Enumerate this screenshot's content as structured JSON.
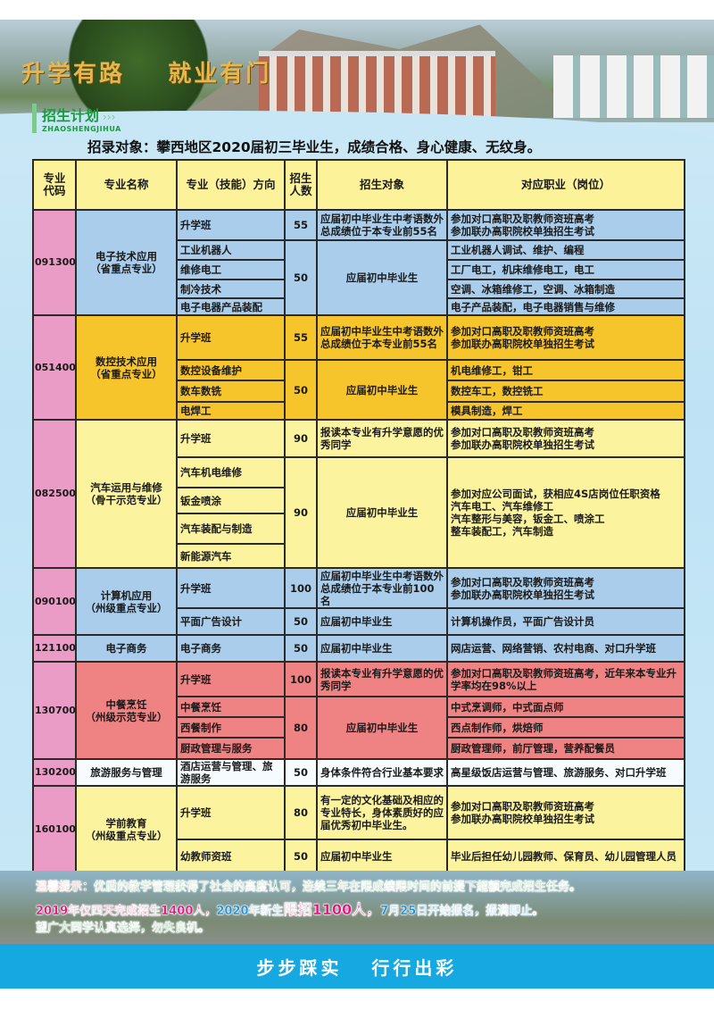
{
  "banner": {
    "title": "升学有路    就业有门"
  },
  "section": {
    "title": "招生计划",
    "arrows": "›››",
    "pinyin": "ZHAOSHENGJIHUA"
  },
  "intro": "招录对象：攀西地区2020届初三毕业生，成绩合格、身心健康、无纹身。",
  "table": {
    "headers": [
      "专业\n代码",
      "专业名称",
      "专业（技能）方向",
      "招生\n人数",
      "招生对象",
      "对应职业（岗位）"
    ],
    "groups": [
      {
        "code": "091300",
        "name": "电子技术应用\n（省重点专业）",
        "color": "#a9cdeb",
        "theme": "blue",
        "sections": [
          {
            "count": "55",
            "target": "应届初中毕业生中考语数外总成绩位于本专业前55名",
            "items": [
              {
                "direction": "升学班",
                "career": "参加对口高职及职教师资班高考\n参加联办高职院校单独招生考试"
              }
            ]
          },
          {
            "count": "50",
            "target": "应届初中毕业生",
            "items": [
              {
                "direction": "工业机器人",
                "career": "工业机器人调试、维护、编程"
              },
              {
                "direction": "维修电工",
                "career": "工厂电工，机床维修电工，电工"
              },
              {
                "direction": "制冷技术",
                "career": "空调、冰箱维修工，空调、冰箱制造"
              },
              {
                "direction": "电子电器产品装配",
                "career": "电子产品装配，电子电器销售与维修"
              }
            ]
          }
        ]
      },
      {
        "code": "051400",
        "name": "数控技术应用\n（省重点专业）",
        "color": "#f6c52b",
        "theme": "orange",
        "sections": [
          {
            "count": "55",
            "target": "应届初中毕业生中考语数外总成绩位于本专业前55名",
            "items": [
              {
                "direction": "升学班",
                "career": "参加对口高职及职教师资班高考\n参加联办高职院校单独招生考试"
              }
            ]
          },
          {
            "count": "50",
            "target": "应届初中毕业生",
            "items": [
              {
                "direction": "数控设备维护",
                "career": "机电维修工，钳工"
              },
              {
                "direction": "数车数铣",
                "career": "数控车工，数控铣工"
              },
              {
                "direction": "电焊工",
                "career": "模具制造，焊工"
              }
            ]
          }
        ]
      },
      {
        "code": "082500",
        "name": "汽车运用与维修\n（骨干示范专业）",
        "color": "#fbf39d",
        "theme": "yellow",
        "sections": [
          {
            "count": "90",
            "target": "报读本专业有升学意愿的优秀同学",
            "items": [
              {
                "direction": "升学班",
                "career": "参加对口高职及职教师资班高考\n参加联办高职院校单独招生考试"
              }
            ]
          },
          {
            "count": "90",
            "target": "应届初中毕业生",
            "career": "参加对应公司面试，获相应4S店岗位任职资格\n汽车电工、汽车维修工\n汽车整形与美容，钣金工、喷涂工\n整车装配工，汽车制造",
            "items": [
              {
                "direction": "汽车机电维修"
              },
              {
                "direction": "钣金喷涂"
              },
              {
                "direction": "汽车装配与制造"
              },
              {
                "direction": "新能源汽车"
              }
            ]
          }
        ]
      },
      {
        "code": "090100",
        "name": "计算机应用\n（州级重点专业）",
        "color": "#a9cdeb",
        "theme": "blue",
        "sections": [
          {
            "count": "100",
            "target": "应届初中毕业生中考语数外总成绩位于本专业前100名",
            "items": [
              {
                "direction": "升学班",
                "career": "参加对口高职及职教师资班高考\n参加联办高职院校单独招生考试"
              }
            ]
          },
          {
            "count": "50",
            "target": "应届初中毕业生",
            "items": [
              {
                "direction": "平面广告设计",
                "career": "计算机操作员，平面广告设计员"
              }
            ]
          }
        ]
      },
      {
        "code": "121100",
        "name": "电子商务",
        "color": "#a9cdeb",
        "theme": "blue",
        "sections": [
          {
            "count": "50",
            "target": "应届初中毕业生",
            "items": [
              {
                "direction": "电子商务",
                "career": "网店运营、网络营销、农村电商、对口升学班"
              }
            ]
          }
        ]
      },
      {
        "code": "130700",
        "name": "中餐烹饪\n（州级示范专业）",
        "color": "#ef8282",
        "theme": "red",
        "sections": [
          {
            "count": "100",
            "target": "报读本专业有升学意愿的优秀同学",
            "items": [
              {
                "direction": "升学班",
                "career": "参加对口高职及职教师资班高考，近年来本专业升学率均在98%以上"
              }
            ]
          },
          {
            "count": "80",
            "target": "应届初中毕业生",
            "items": [
              {
                "direction": "中餐烹饪",
                "career": "中式烹调师，中式面点师"
              },
              {
                "direction": "西餐制作",
                "career": "西点制作师，烘焙师"
              },
              {
                "direction": "厨政管理与服务",
                "career": "厨政管理师，前厅管理，营养配餐员"
              }
            ]
          }
        ]
      },
      {
        "code": "130200",
        "name": "旅游服务与管理",
        "color": "#f6fbfd",
        "theme": "white",
        "sections": [
          {
            "count": "50",
            "target": "身体条件符合行业基本要求",
            "items": [
              {
                "direction": "酒店运营与管理、旅游服务",
                "career": "高星级饭店运营与管理、旅游服务、对口升学班"
              }
            ]
          }
        ]
      },
      {
        "code": "160100",
        "name": "学前教育\n（州级重点专业）",
        "color": "#fbf39d",
        "theme": "yellow",
        "sections": [
          {
            "count": "80",
            "target": "有一定的文化基础及相应的专业特长，身体素质好的应届优秀初中毕业生。",
            "items": [
              {
                "direction": "升学班",
                "career": "参加对口高职及职教师资班高考\n参加联办高职院校单独招生考试"
              }
            ]
          },
          {
            "count": "50",
            "target": "应届初中毕业生",
            "items": [
              {
                "direction": "幼教师资班",
                "career": "毕业后担任幼儿园教师、保育员、幼儿园管理人员"
              }
            ]
          }
        ]
      }
    ]
  },
  "notice": {
    "label": "温馨提示：",
    "line1": "优质的教学管理获得了社会的高度认可，连续三年在限成绩限时间的前提下超额完成招生任务。",
    "line2a": "2019年仅四天完成招生1400人，",
    "line2b": "2020年新生",
    "line2c": "限招1100人，",
    "line2d": "7月25日开始报名，报满即止。",
    "line3": "望广大同学认真选择，勿失良机。",
    "colors": {
      "label": "#e8241f",
      "green": "#1f9a3a",
      "magenta": "#e0157f",
      "blue": "#1a8fd6"
    }
  },
  "footer": {
    "slogan": "步步踩实   行行出彩",
    "band_color": "#16a8e0"
  }
}
